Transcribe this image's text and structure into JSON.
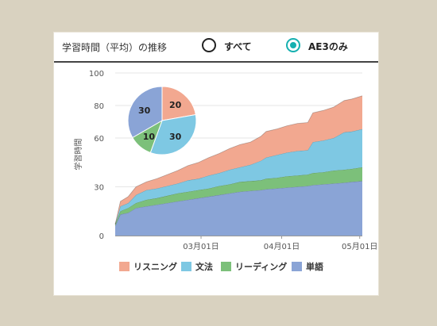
{
  "header": {
    "title": "学習時間（平均）の推移",
    "options": [
      {
        "label": "すべて",
        "selected": false
      },
      {
        "label": "AE3のみ",
        "selected": true
      }
    ]
  },
  "colors": {
    "listening": "#f2a890",
    "grammar": "#7ec8e3",
    "reading": "#7cc07a",
    "vocab": "#8aa4d6",
    "radio_accent": "#16b0b0"
  },
  "chart_data": [
    {
      "type": "area",
      "stacked": true,
      "xlabel": "",
      "ylabel": "学習時間",
      "ylim": [
        0,
        100
      ],
      "yticks": [
        0,
        30,
        60,
        80,
        100
      ],
      "xticks": [
        "03月01日",
        "04月01日",
        "05月01日"
      ],
      "xtick_days": [
        33,
        64,
        94
      ],
      "xlim": [
        0,
        95
      ],
      "grid": "horizontal",
      "legend_position": "bottom",
      "x": [
        0,
        2,
        5,
        8,
        12,
        16,
        20,
        24,
        28,
        32,
        36,
        40,
        44,
        48,
        52,
        56,
        58,
        62,
        66,
        70,
        74,
        76,
        80,
        84,
        88,
        91,
        95
      ],
      "series": [
        {
          "name": "単語",
          "color_key": "vocab",
          "values": [
            6,
            13,
            14,
            17,
            18,
            19,
            20,
            21,
            22,
            23,
            24,
            25,
            26,
            27,
            27.5,
            28,
            28.5,
            29,
            29.5,
            30,
            30.5,
            31,
            31.5,
            32,
            32.5,
            33,
            33.5
          ]
        },
        {
          "name": "リーディング",
          "color_key": "reading",
          "values": [
            1,
            2,
            3,
            3,
            4,
            4,
            4.5,
            5,
            5,
            5,
            5,
            5.5,
            5.5,
            6,
            6,
            6,
            6.5,
            6.5,
            7,
            7,
            7,
            7.5,
            7.5,
            8,
            8,
            8,
            8.5
          ]
        },
        {
          "name": "文法",
          "color_key": "grammar",
          "values": [
            0,
            3,
            3,
            5,
            6,
            6,
            6,
            6,
            7,
            7,
            8,
            8,
            9,
            9,
            10,
            12,
            13,
            14,
            14.5,
            15,
            15,
            19,
            19.5,
            20,
            23,
            23,
            23.5
          ]
        },
        {
          "name": "リスニング",
          "color_key": "listening",
          "values": [
            0,
            3,
            4,
            5,
            5,
            6,
            7,
            8,
            9,
            10,
            11,
            12,
            13,
            14,
            14,
            15,
            16,
            16,
            16.5,
            17,
            17,
            18,
            18.5,
            19,
            19.5,
            20,
            20.5
          ]
        }
      ]
    },
    {
      "type": "pie",
      "slices": [
        {
          "name": "リスニング",
          "value": 20,
          "color_key": "listening"
        },
        {
          "name": "文法",
          "value": 30,
          "color_key": "grammar"
        },
        {
          "name": "リーディング",
          "value": 10,
          "color_key": "reading"
        },
        {
          "name": "単語",
          "value": 30,
          "color_key": "vocab"
        }
      ]
    }
  ],
  "legend": [
    {
      "label": "リスニング",
      "color_key": "listening"
    },
    {
      "label": "文法",
      "color_key": "grammar"
    },
    {
      "label": "リーディング",
      "color_key": "reading"
    },
    {
      "label": "単語",
      "color_key": "vocab"
    }
  ]
}
